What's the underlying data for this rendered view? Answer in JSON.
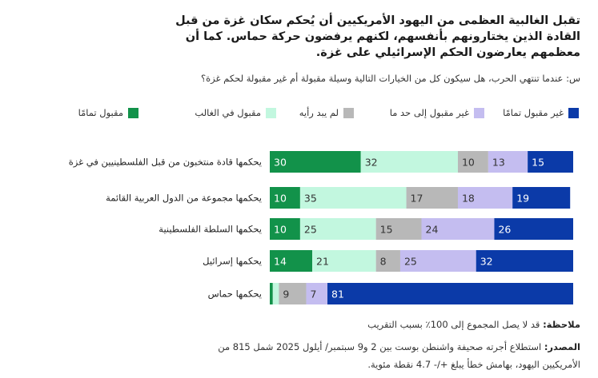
{
  "title": "تقبل الغالبية العظمى من اليهود الأمريكيين أن يُحكم سكان غزة من قبل القادة الذين يختارونهم بأنفسهم، لكنهم يرفضون حركة حماس. كما أن معظمهم يعارضون الحكم الإسرائيلي على غزة.",
  "subtitle": "س: عندما تنتهي الحرب، هل سيكون كل من الخيارات التالية وسيلة مقبولة أم غير مقبولة لحكم غزة؟",
  "legend": [
    {
      "label": "غير مقبول تمامًا",
      "color": "#0b3aa8"
    },
    {
      "label": "غير مقبول إلى حد ما",
      "color": "#c4bdf0"
    },
    {
      "label": "لم يبد رأيه",
      "color": "#b8b8b8"
    },
    {
      "label": "مقبول في الغالب",
      "color": "#c2f7df"
    },
    {
      "label": "مقبول تمامًا",
      "color": "#12924a"
    }
  ],
  "chart_data": {
    "type": "bar",
    "orientation": "horizontal-stacked",
    "categories": [
      "يحكمها قادة منتخبون من قبل الفلسطينيين في غزة",
      "يحكمها مجموعة من الدول العربية القائمة",
      "يحكمها السلطة الفلسطينية",
      "يحكمها إسرائيل",
      "يحكمها حماس"
    ],
    "series": [
      {
        "name": "مقبول تمامًا",
        "color": "#12924a",
        "text_color": "#ffffff",
        "values": [
          30,
          10,
          10,
          14,
          1
        ]
      },
      {
        "name": "مقبول في الغالب",
        "color": "#c2f7df",
        "text_color": "#333333",
        "values": [
          32,
          35,
          25,
          21,
          2
        ]
      },
      {
        "name": "لم يبد رأيه",
        "color": "#b8b8b8",
        "text_color": "#333333",
        "values": [
          10,
          17,
          15,
          8,
          9
        ]
      },
      {
        "name": "غير مقبول إلى حد ما",
        "color": "#c4bdf0",
        "text_color": "#333333",
        "values": [
          13,
          18,
          24,
          25,
          7
        ]
      },
      {
        "name": "غير مقبول تمامًا",
        "color": "#0b3aa8",
        "text_color": "#ffffff",
        "values": [
          15,
          19,
          26,
          32,
          81
        ]
      }
    ],
    "label_min_value": 3,
    "xlim": [
      0,
      100
    ]
  },
  "note": {
    "label": "ملاحظة:",
    "text": "قد لا يصل المجموع إلى 100٪ بسبب التقريب"
  },
  "source": {
    "label": "المصدر:",
    "text": "استطلاع أجرته صحيفة واشنطن بوست بين 2 و9 سبتمبر/ أيلول 2025 شمل 815 من",
    "text2": "الأمريكيين اليهود، بهامش خطأ يبلغ +/- 4.7 نقطة مئوية."
  }
}
